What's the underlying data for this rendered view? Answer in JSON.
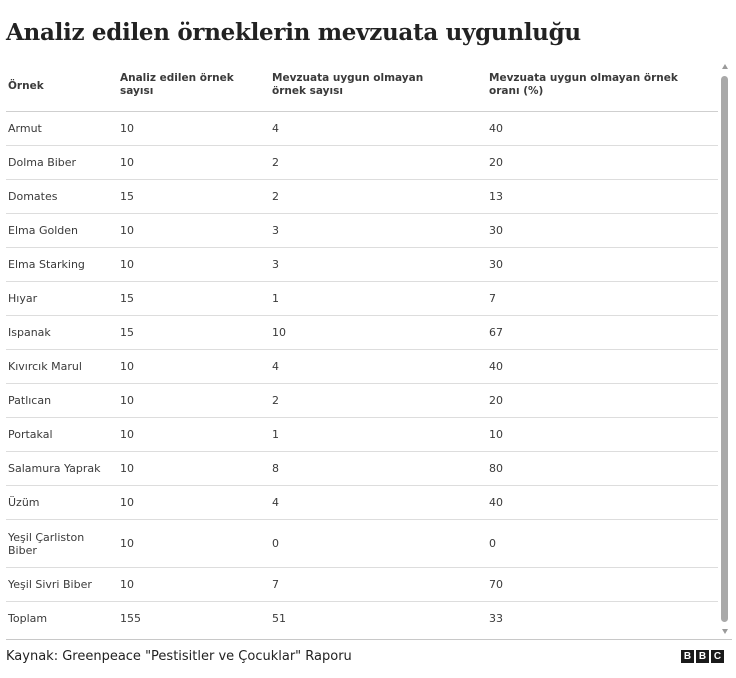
{
  "title": "Analiz edilen örneklerin mevzuata uygunluğu",
  "table": {
    "headers": [
      "Örnek",
      "Analiz edilen örnek sayısı",
      "Mevzuata uygun olmayan örnek sayısı",
      "Mevzuata uygun olmayan örnek oranı (%)"
    ],
    "rows": [
      [
        "Armut",
        "10",
        "4",
        "40"
      ],
      [
        "Dolma Biber",
        "10",
        "2",
        "20"
      ],
      [
        "Domates",
        "15",
        "2",
        "13"
      ],
      [
        "Elma Golden",
        "10",
        "3",
        "30"
      ],
      [
        "Elma Starking",
        "10",
        "3",
        "30"
      ],
      [
        "Hıyar",
        "15",
        "1",
        "7"
      ],
      [
        "Ispanak",
        "15",
        "10",
        "67"
      ],
      [
        "Kıvırcık Marul",
        "10",
        "4",
        "40"
      ],
      [
        "Patlıcan",
        "10",
        "2",
        "20"
      ],
      [
        "Portakal",
        "10",
        "1",
        "10"
      ],
      [
        "Salamura Yaprak",
        "10",
        "8",
        "80"
      ],
      [
        "Üzüm",
        "10",
        "4",
        "40"
      ],
      [
        "Yeşil Çarliston Biber",
        "10",
        "0",
        "0"
      ],
      [
        "Yeşil Sivri Biber",
        "10",
        "7",
        "70"
      ],
      [
        "Toplam",
        "155",
        "51",
        "33"
      ]
    ]
  },
  "footer": {
    "source": "Kaynak: Greenpeace \"Pestisitler ve Çocuklar\" Raporu",
    "logo_letters": [
      "B",
      "B",
      "C"
    ]
  }
}
